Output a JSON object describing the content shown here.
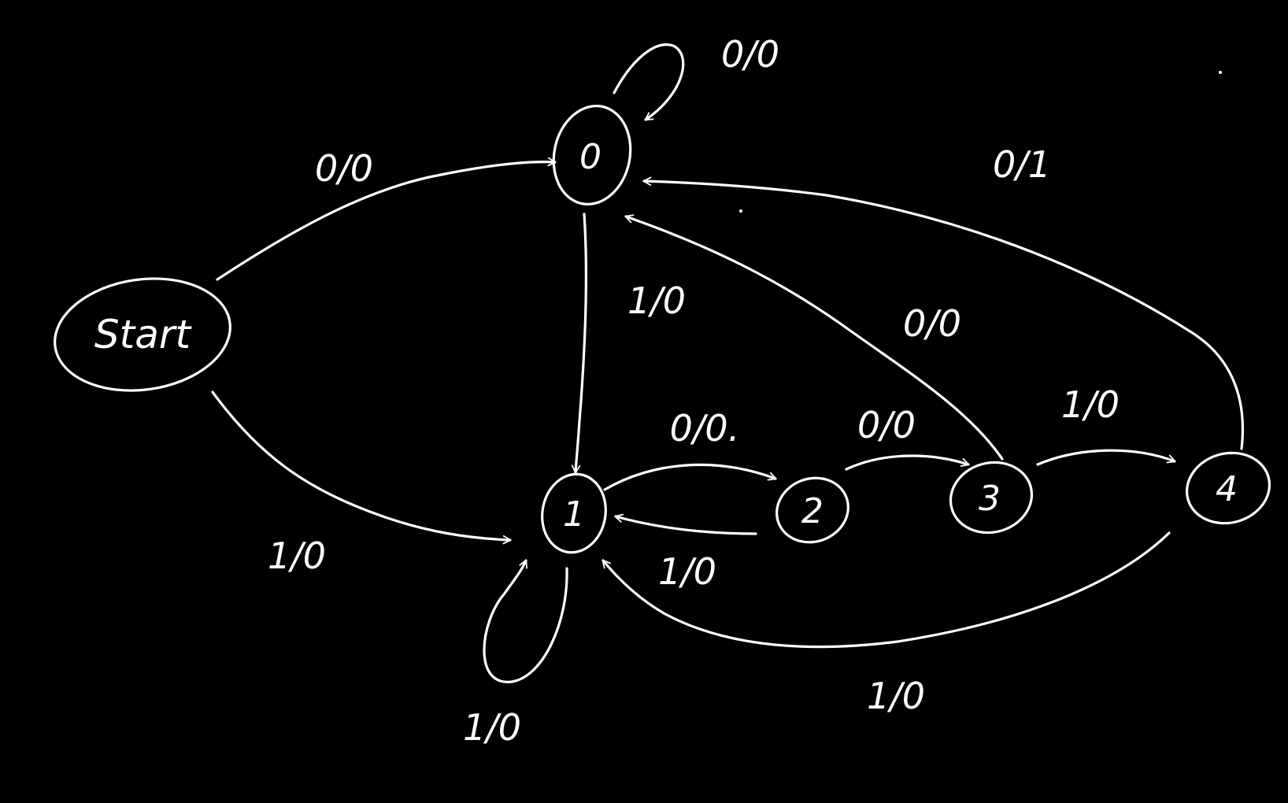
{
  "colors": {
    "background": "#000000",
    "ink": "#ffffff"
  },
  "nodes": {
    "start": "Start",
    "s0": "0",
    "s1": "1",
    "s2": "2",
    "s3": "3",
    "s4": "4"
  },
  "edges": {
    "start_to_0": "0/0",
    "start_to_1": "1/0",
    "loop_0": "0/0",
    "from_0_to_1": "1/0",
    "loop_1": "1/0",
    "from_1_to_2": "0/0.",
    "from_2_to_3": "0/0",
    "from_3_to_4": "1/0",
    "from_3_to_0": "0/0",
    "from_4_to_0": "0/1",
    "from_2_to_1": "1/0",
    "from_4_to_1": "1/0"
  }
}
